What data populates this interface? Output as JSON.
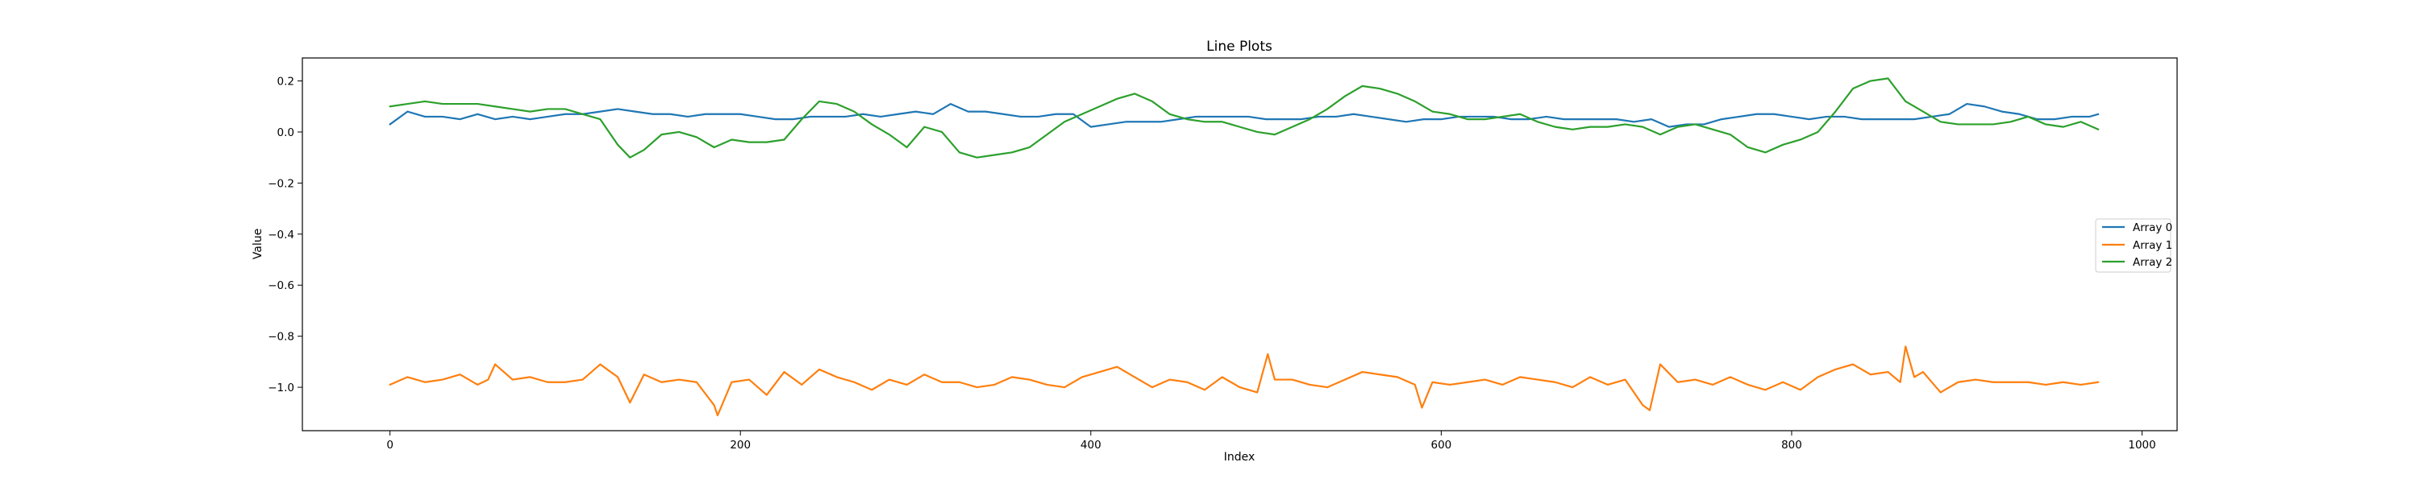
{
  "chart_data": {
    "type": "line",
    "title": "Line Plots",
    "xlabel": "Index",
    "ylabel": "Value",
    "xlim": [
      -50,
      1020
    ],
    "ylim": [
      -1.17,
      0.29
    ],
    "x_ticks": [
      0,
      200,
      400,
      600,
      800,
      1000
    ],
    "y_ticks": [
      0.2,
      0.0,
      -0.2,
      -0.4,
      -0.6,
      -0.8,
      -1.0
    ],
    "y_tick_labels": [
      "0.2",
      "0.0",
      "−0.2",
      "−0.4",
      "−0.6",
      "−0.8",
      "−1.0"
    ],
    "legend_position": "center right",
    "grid": false,
    "series": [
      {
        "name": "Array 0",
        "color": "#1f77b4",
        "x": [
          0,
          10,
          20,
          30,
          40,
          50,
          60,
          70,
          80,
          90,
          100,
          110,
          120,
          130,
          140,
          150,
          160,
          170,
          180,
          190,
          200,
          210,
          220,
          230,
          240,
          250,
          260,
          270,
          280,
          290,
          300,
          310,
          320,
          330,
          340,
          350,
          360,
          370,
          380,
          390,
          400,
          410,
          420,
          430,
          440,
          450,
          460,
          470,
          480,
          490,
          500,
          510,
          520,
          530,
          540,
          550,
          560,
          570,
          580,
          590,
          600,
          610,
          620,
          630,
          640,
          650,
          660,
          670,
          680,
          690,
          700,
          710,
          720,
          730,
          740,
          750,
          760,
          770,
          780,
          790,
          800,
          810,
          820,
          830,
          840,
          850,
          860,
          870,
          880,
          890,
          900,
          910,
          920,
          930,
          940,
          950,
          960,
          970,
          975
        ],
        "values": [
          0.03,
          0.08,
          0.06,
          0.06,
          0.05,
          0.07,
          0.05,
          0.06,
          0.05,
          0.06,
          0.07,
          0.07,
          0.08,
          0.09,
          0.08,
          0.07,
          0.07,
          0.06,
          0.07,
          0.07,
          0.07,
          0.06,
          0.05,
          0.05,
          0.06,
          0.06,
          0.06,
          0.07,
          0.06,
          0.07,
          0.08,
          0.07,
          0.11,
          0.08,
          0.08,
          0.07,
          0.06,
          0.06,
          0.07,
          0.07,
          0.02,
          0.03,
          0.04,
          0.04,
          0.04,
          0.05,
          0.06,
          0.06,
          0.06,
          0.06,
          0.05,
          0.05,
          0.05,
          0.06,
          0.06,
          0.07,
          0.06,
          0.05,
          0.04,
          0.05,
          0.05,
          0.06,
          0.06,
          0.06,
          0.05,
          0.05,
          0.06,
          0.05,
          0.05,
          0.05,
          0.05,
          0.04,
          0.05,
          0.02,
          0.03,
          0.03,
          0.05,
          0.06,
          0.07,
          0.07,
          0.06,
          0.05,
          0.06,
          0.06,
          0.05,
          0.05,
          0.05,
          0.05,
          0.06,
          0.07,
          0.11,
          0.1,
          0.08,
          0.07,
          0.05,
          0.05,
          0.06,
          0.06,
          0.07
        ]
      },
      {
        "name": "Array 1",
        "color": "#ff7f0e",
        "x": [
          0,
          10,
          20,
          30,
          40,
          50,
          56,
          60,
          70,
          80,
          90,
          100,
          110,
          120,
          130,
          137,
          145,
          155,
          165,
          175,
          185,
          187,
          195,
          205,
          215,
          225,
          235,
          245,
          255,
          265,
          275,
          285,
          295,
          305,
          315,
          325,
          335,
          345,
          355,
          365,
          375,
          385,
          395,
          405,
          415,
          425,
          435,
          445,
          455,
          465,
          475,
          485,
          495,
          501,
          505,
          515,
          525,
          535,
          545,
          555,
          565,
          575,
          585,
          589,
          595,
          605,
          615,
          625,
          635,
          645,
          655,
          665,
          675,
          685,
          695,
          705,
          715,
          719,
          725,
          735,
          745,
          755,
          765,
          775,
          785,
          795,
          805,
          815,
          825,
          835,
          845,
          855,
          862,
          865,
          870,
          875,
          885,
          895,
          905,
          915,
          925,
          935,
          945,
          955,
          965,
          975
        ],
        "values": [
          -0.99,
          -0.96,
          -0.98,
          -0.97,
          -0.95,
          -0.99,
          -0.97,
          -0.91,
          -0.97,
          -0.96,
          -0.98,
          -0.98,
          -0.97,
          -0.91,
          -0.96,
          -1.06,
          -0.95,
          -0.98,
          -0.97,
          -0.98,
          -1.07,
          -1.11,
          -0.98,
          -0.97,
          -1.03,
          -0.94,
          -0.99,
          -0.93,
          -0.96,
          -0.98,
          -1.01,
          -0.97,
          -0.99,
          -0.95,
          -0.98,
          -0.98,
          -1.0,
          -0.99,
          -0.96,
          -0.97,
          -0.99,
          -1.0,
          -0.96,
          -0.94,
          -0.92,
          -0.96,
          -1.0,
          -0.97,
          -0.98,
          -1.01,
          -0.96,
          -1.0,
          -1.02,
          -0.87,
          -0.97,
          -0.97,
          -0.99,
          -1.0,
          -0.97,
          -0.94,
          -0.95,
          -0.96,
          -0.99,
          -1.08,
          -0.98,
          -0.99,
          -0.98,
          -0.97,
          -0.99,
          -0.96,
          -0.97,
          -0.98,
          -1.0,
          -0.96,
          -0.99,
          -0.97,
          -1.07,
          -1.09,
          -0.91,
          -0.98,
          -0.97,
          -0.99,
          -0.96,
          -0.99,
          -1.01,
          -0.98,
          -1.01,
          -0.96,
          -0.93,
          -0.91,
          -0.95,
          -0.94,
          -0.98,
          -0.84,
          -0.96,
          -0.94,
          -1.02,
          -0.98,
          -0.97,
          -0.98,
          -0.98,
          -0.98,
          -0.99,
          -0.98,
          -0.99,
          -0.98
        ]
      },
      {
        "name": "Array 2",
        "color": "#2ca02c",
        "x": [
          0,
          10,
          20,
          30,
          40,
          50,
          60,
          70,
          80,
          90,
          100,
          110,
          120,
          130,
          137,
          145,
          155,
          165,
          175,
          185,
          195,
          205,
          215,
          225,
          235,
          245,
          255,
          265,
          275,
          285,
          295,
          305,
          315,
          325,
          335,
          345,
          355,
          365,
          375,
          385,
          395,
          405,
          415,
          425,
          435,
          445,
          455,
          465,
          475,
          485,
          495,
          505,
          515,
          525,
          535,
          545,
          555,
          565,
          575,
          585,
          595,
          605,
          615,
          625,
          635,
          645,
          655,
          665,
          675,
          685,
          695,
          705,
          715,
          725,
          735,
          745,
          755,
          765,
          775,
          785,
          795,
          805,
          815,
          825,
          835,
          845,
          855,
          865,
          875,
          885,
          895,
          905,
          915,
          925,
          935,
          945,
          955,
          965,
          975
        ],
        "values": [
          0.1,
          0.11,
          0.12,
          0.11,
          0.11,
          0.11,
          0.1,
          0.09,
          0.08,
          0.09,
          0.09,
          0.07,
          0.05,
          -0.05,
          -0.1,
          -0.07,
          -0.01,
          0.0,
          -0.02,
          -0.06,
          -0.03,
          -0.04,
          -0.04,
          -0.03,
          0.05,
          0.12,
          0.11,
          0.08,
          0.03,
          -0.01,
          -0.06,
          0.02,
          0.0,
          -0.08,
          -0.1,
          -0.09,
          -0.08,
          -0.06,
          -0.01,
          0.04,
          0.07,
          0.1,
          0.13,
          0.15,
          0.12,
          0.07,
          0.05,
          0.04,
          0.04,
          0.02,
          0.0,
          -0.01,
          0.02,
          0.05,
          0.09,
          0.14,
          0.18,
          0.17,
          0.15,
          0.12,
          0.08,
          0.07,
          0.05,
          0.05,
          0.06,
          0.07,
          0.04,
          0.02,
          0.01,
          0.02,
          0.02,
          0.03,
          0.02,
          -0.01,
          0.02,
          0.03,
          0.01,
          -0.01,
          -0.06,
          -0.08,
          -0.05,
          -0.03,
          0.0,
          0.08,
          0.17,
          0.2,
          0.21,
          0.12,
          0.08,
          0.04,
          0.03,
          0.03,
          0.03,
          0.04,
          0.06,
          0.03,
          0.02,
          0.04,
          0.01
        ]
      }
    ]
  }
}
